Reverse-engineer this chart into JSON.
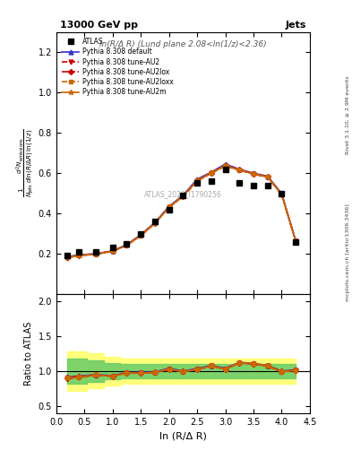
{
  "title_left": "13000 GeV pp",
  "title_right": "Jets",
  "subplot_title": "ln(R/Δ R) (Lund plane 2.08<ln(1/z)<2.36)",
  "watermark": "ATLAS_2020_I1790256",
  "right_label_top": "Rivet 3.1.10, ≥ 2.9M events",
  "right_label_bottom": "mcplots.cern.ch [arXiv:1306.3436]",
  "ylabel_main": "1\n―\nNⱼetₛ d²Nₑmᵢₜₜᵢₒₙₛ / dln(R/Δ R) ln(1/z)",
  "ylabel_ratio": "Ratio to ATLAS",
  "xlabel": "ln (R/Δ R)",
  "xlim": [
    0,
    4.5
  ],
  "ylim_main": [
    0.0,
    1.3
  ],
  "ylim_ratio": [
    0.4,
    2.1
  ],
  "yticks_main": [
    0.2,
    0.4,
    0.6,
    0.8,
    1.0,
    1.2
  ],
  "yticks_ratio": [
    0.5,
    1.0,
    1.5,
    2.0
  ],
  "atlas_x": [
    0.2,
    0.4,
    0.7,
    1.0,
    1.25,
    1.5,
    1.75,
    2.0,
    2.25,
    2.5,
    2.75,
    3.0,
    3.25,
    3.5,
    3.75,
    4.0,
    4.25
  ],
  "atlas_y": [
    0.19,
    0.21,
    0.21,
    0.23,
    0.25,
    0.3,
    0.36,
    0.42,
    0.49,
    0.55,
    0.56,
    0.62,
    0.55,
    0.54,
    0.54,
    0.5,
    0.26
  ],
  "default_x": [
    0.2,
    0.4,
    0.7,
    1.0,
    1.25,
    1.5,
    1.75,
    2.0,
    2.25,
    2.5,
    2.75,
    3.0,
    3.25,
    3.5,
    3.75,
    4.0,
    4.25
  ],
  "default_y": [
    0.185,
    0.195,
    0.2,
    0.215,
    0.245,
    0.295,
    0.355,
    0.435,
    0.49,
    0.57,
    0.605,
    0.645,
    0.62,
    0.6,
    0.585,
    0.5,
    0.265
  ],
  "au2_x": [
    0.2,
    0.4,
    0.7,
    1.0,
    1.25,
    1.5,
    1.75,
    2.0,
    2.25,
    2.5,
    2.75,
    3.0,
    3.25,
    3.5,
    3.75,
    4.0,
    4.25
  ],
  "au2_y": [
    0.18,
    0.19,
    0.198,
    0.212,
    0.242,
    0.29,
    0.35,
    0.43,
    0.485,
    0.56,
    0.6,
    0.635,
    0.615,
    0.595,
    0.58,
    0.495,
    0.262
  ],
  "au2lox_x": [
    0.2,
    0.4,
    0.7,
    1.0,
    1.25,
    1.5,
    1.75,
    2.0,
    2.25,
    2.5,
    2.75,
    3.0,
    3.25,
    3.5,
    3.75,
    4.0,
    4.25
  ],
  "au2lox_y": [
    0.183,
    0.193,
    0.199,
    0.213,
    0.243,
    0.292,
    0.352,
    0.432,
    0.487,
    0.563,
    0.602,
    0.638,
    0.617,
    0.597,
    0.582,
    0.497,
    0.263
  ],
  "au2loxx_x": [
    0.2,
    0.4,
    0.7,
    1.0,
    1.25,
    1.5,
    1.75,
    2.0,
    2.25,
    2.5,
    2.75,
    3.0,
    3.25,
    3.5,
    3.75,
    4.0,
    4.25
  ],
  "au2loxx_y": [
    0.183,
    0.193,
    0.199,
    0.213,
    0.243,
    0.292,
    0.352,
    0.432,
    0.487,
    0.563,
    0.602,
    0.638,
    0.617,
    0.597,
    0.582,
    0.497,
    0.263
  ],
  "au2m_x": [
    0.2,
    0.4,
    0.7,
    1.0,
    1.25,
    1.5,
    1.75,
    2.0,
    2.25,
    2.5,
    2.75,
    3.0,
    3.25,
    3.5,
    3.75,
    4.0,
    4.25
  ],
  "au2m_y": [
    0.181,
    0.191,
    0.198,
    0.212,
    0.242,
    0.291,
    0.35,
    0.43,
    0.486,
    0.562,
    0.601,
    0.636,
    0.616,
    0.596,
    0.581,
    0.496,
    0.262
  ],
  "ratio_default_y": [
    0.92,
    0.93,
    0.95,
    0.935,
    0.98,
    0.985,
    0.985,
    1.04,
    1.0,
    1.035,
    1.08,
    1.04,
    1.125,
    1.11,
    1.08,
    1.0,
    1.02
  ],
  "ratio_au2_y": [
    0.89,
    0.905,
    0.94,
    0.925,
    0.97,
    0.97,
    0.975,
    1.025,
    0.99,
    1.02,
    1.07,
    1.025,
    1.115,
    1.1,
    1.07,
    0.99,
    1.01
  ],
  "ratio_au2lox_y": [
    0.91,
    0.92,
    0.945,
    0.928,
    0.975,
    0.975,
    0.98,
    1.03,
    0.993,
    1.025,
    1.075,
    1.03,
    1.12,
    1.105,
    1.075,
    0.993,
    1.013
  ],
  "ratio_au2loxx_y": [
    0.91,
    0.92,
    0.945,
    0.928,
    0.975,
    0.975,
    0.98,
    1.03,
    0.993,
    1.025,
    1.075,
    1.03,
    1.12,
    1.105,
    1.075,
    0.993,
    1.013
  ],
  "ratio_au2m_y": [
    0.9,
    0.91,
    0.942,
    0.926,
    0.972,
    0.972,
    0.977,
    1.027,
    0.99,
    1.022,
    1.072,
    1.027,
    1.117,
    1.102,
    1.072,
    0.99,
    1.01
  ],
  "band_yellow_lo": [
    0.72,
    0.72,
    0.75,
    0.8,
    0.82,
    0.82,
    0.82,
    0.82,
    0.82,
    0.82,
    0.82,
    0.82,
    0.82,
    0.82,
    0.82,
    0.82,
    0.82
  ],
  "band_yellow_hi": [
    1.28,
    1.28,
    1.25,
    1.2,
    1.18,
    1.18,
    1.18,
    1.18,
    1.18,
    1.18,
    1.18,
    1.18,
    1.18,
    1.18,
    1.18,
    1.18,
    1.18
  ],
  "band_green_lo": [
    0.82,
    0.82,
    0.85,
    0.88,
    0.9,
    0.9,
    0.9,
    0.9,
    0.9,
    0.9,
    0.9,
    0.9,
    0.9,
    0.9,
    0.9,
    0.9,
    0.9
  ],
  "band_green_hi": [
    1.18,
    1.18,
    1.15,
    1.12,
    1.1,
    1.1,
    1.1,
    1.1,
    1.1,
    1.1,
    1.1,
    1.1,
    1.1,
    1.1,
    1.1,
    1.1,
    1.1
  ],
  "band_x": [
    0.2,
    0.4,
    0.7,
    1.0,
    1.25,
    1.5,
    1.75,
    2.0,
    2.25,
    2.5,
    2.75,
    3.0,
    3.25,
    3.5,
    3.75,
    4.0,
    4.25
  ],
  "color_default": "#3333cc",
  "color_au2": "#cc0000",
  "color_au2lox": "#cc0000",
  "color_au2loxx": "#cc6600",
  "color_au2m": "#cc6600",
  "color_atlas": "#000000",
  "bg_color": "#ffffff"
}
